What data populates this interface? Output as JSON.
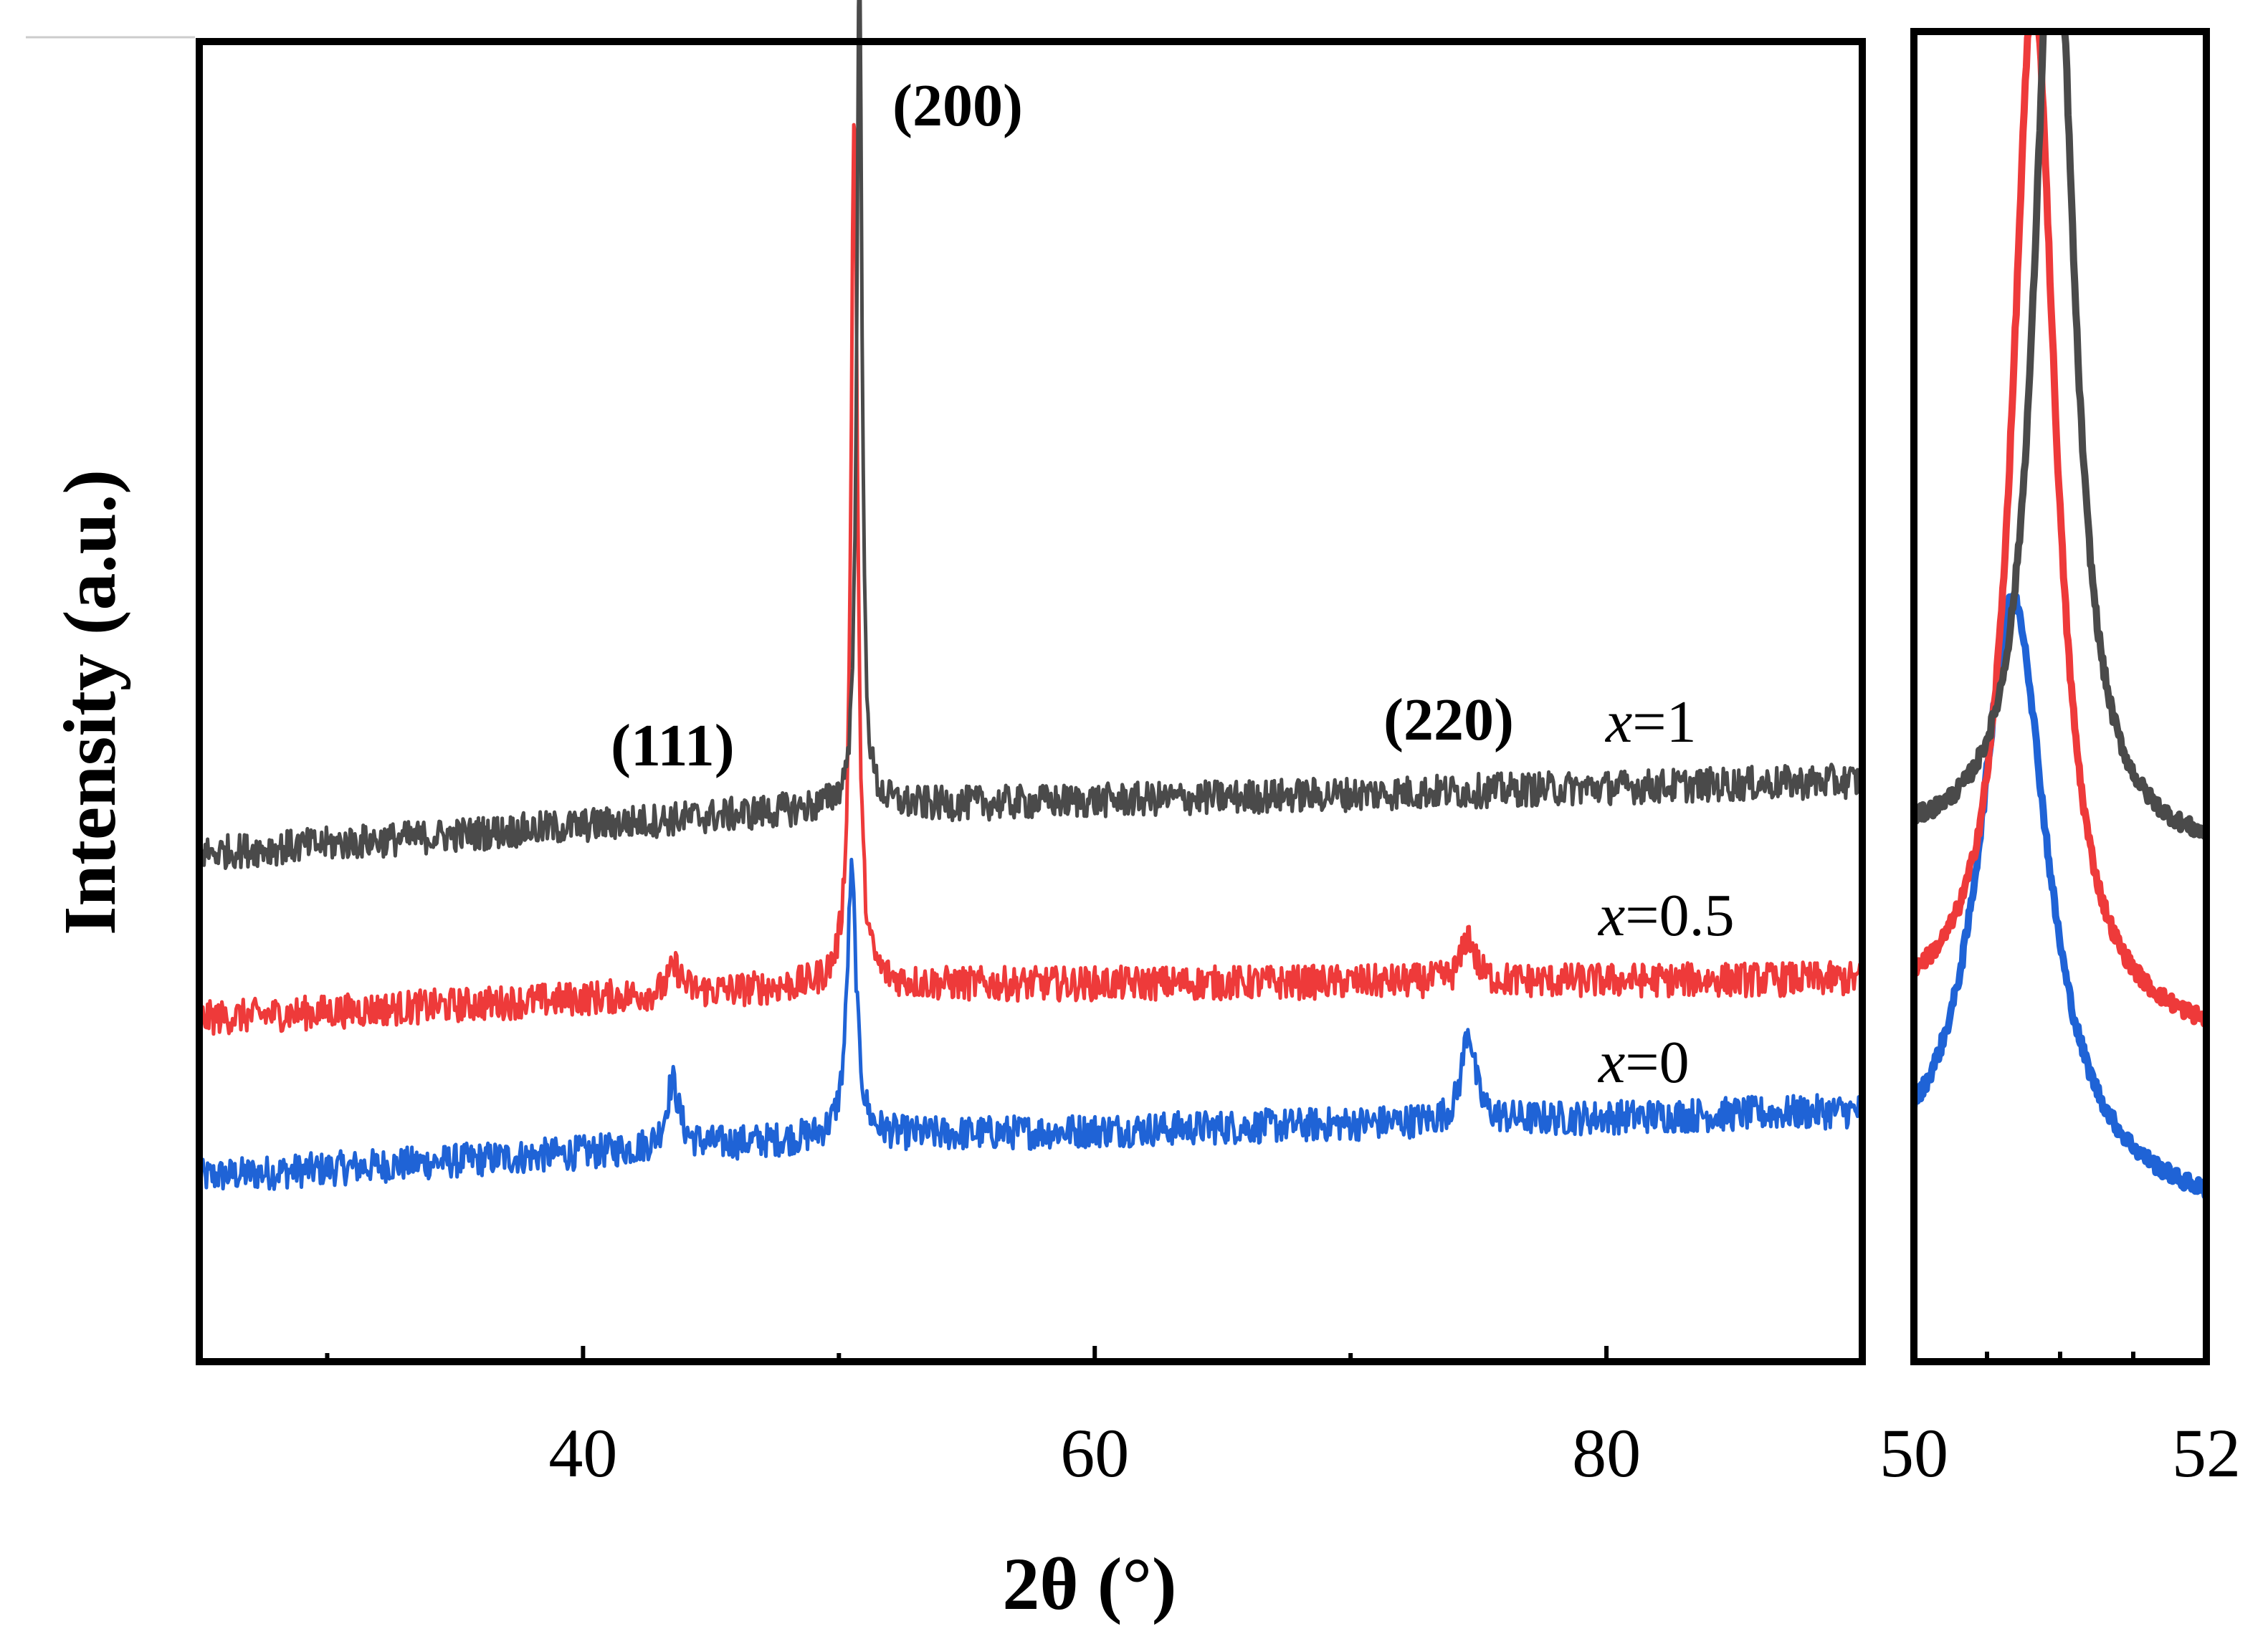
{
  "chart_data": [
    {
      "type": "line",
      "panel": "main",
      "xlabel": "2θ (°)",
      "ylabel": "Intensity (a.u.)",
      "xlim": [
        25,
        90
      ],
      "x_ticks": [
        40,
        60,
        80
      ],
      "x_tick_labels": [
        "40",
        "60",
        "80"
      ],
      "y_ticks_shown": false,
      "peaks": [
        {
          "label": "(111)",
          "x": 43.5
        },
        {
          "label": "(200)",
          "x": 50.6
        },
        {
          "label": "(220)",
          "x": 74.6
        }
      ],
      "series": [
        {
          "name": "x=0",
          "label_var": "x",
          "label_value": "=0",
          "color": "#1f63d6",
          "baseline": [
            [
              25,
              0.14
            ],
            [
              50,
              0.17
            ],
            [
              90,
              0.19
            ]
          ],
          "peaks": [
            {
              "x": 43.5,
              "h": 0.05,
              "w": 0.3
            },
            {
              "x": 50.5,
              "h": 0.2,
              "w": 0.22
            },
            {
              "x": 74.6,
              "h": 0.07,
              "w": 0.3
            }
          ]
        },
        {
          "name": "x=0.5",
          "label_var": "x",
          "label_value": "=0.5",
          "color": "#ee3a3a",
          "baseline": [
            [
              25,
              0.26
            ],
            [
              50,
              0.285
            ],
            [
              90,
              0.29
            ]
          ],
          "peaks": [
            {
              "x": 43.6,
              "h": 0.02,
              "w": 0.3
            },
            {
              "x": 50.6,
              "h": 0.67,
              "w": 0.15
            },
            {
              "x": 74.6,
              "h": 0.035,
              "w": 0.3
            }
          ]
        },
        {
          "name": "x=1",
          "label_var": "x",
          "label_value": "=1",
          "color": "#4a4a4a",
          "baseline": [
            [
              25,
              0.385
            ],
            [
              50,
              0.42
            ],
            [
              90,
              0.44
            ]
          ],
          "peaks": [
            {
              "x": 50.8,
              "h": 0.65,
              "w": 0.12
            }
          ]
        }
      ]
    },
    {
      "type": "line",
      "panel": "inset",
      "xlim": [
        50,
        52
      ],
      "x_ticks": [
        50,
        52
      ],
      "x_tick_labels": [
        "50",
        "52"
      ],
      "y_ticks_shown": false,
      "series": [
        {
          "name": "x=0",
          "color": "#1f63d6",
          "baseline": [
            [
              50,
              0.13
            ],
            [
              52,
              0.11
            ]
          ],
          "peak": {
            "x": 50.68,
            "h": 0.45,
            "w": 0.28
          }
        },
        {
          "name": "x=0.5",
          "color": "#ee3a3a",
          "baseline": [
            [
              50,
              0.26
            ],
            [
              52,
              0.24
            ]
          ],
          "peak": {
            "x": 50.82,
            "h": 0.78,
            "w": 0.18
          }
        },
        {
          "name": "x=1",
          "color": "#4a4a4a",
          "baseline": [
            [
              50,
              0.39
            ],
            [
              52,
              0.38
            ]
          ],
          "peak": {
            "x": 50.96,
            "h": 0.75,
            "w": 0.16
          }
        }
      ]
    }
  ]
}
